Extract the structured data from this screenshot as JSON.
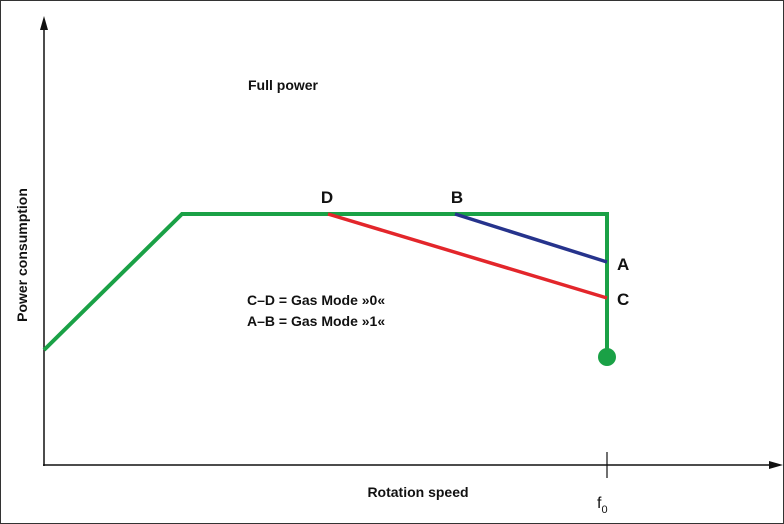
{
  "title": "Full power",
  "axes": {
    "y_label": "Power consumption",
    "x_label": "Rotation speed",
    "x_marker": {
      "text": "f",
      "subscript": "0"
    }
  },
  "points": {
    "d": "D",
    "b": "B",
    "a": "A",
    "c": "C"
  },
  "legend": [
    "C–D = Gas Mode »0«",
    "A–B = Gas Mode »1«"
  ]
}
